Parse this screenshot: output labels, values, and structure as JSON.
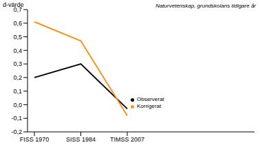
{
  "chart_data": {
    "type": "line",
    "title": "Naturvetenskap, grundskolans tidigare år",
    "y_label": "d-värde",
    "categories": [
      "FISS 1970",
      "SISS 1984",
      "TIMSS 2007"
    ],
    "series": [
      {
        "name": "Observerat",
        "color": "#000000",
        "values": [
          0.2,
          0.3,
          -0.03
        ]
      },
      {
        "name": "Korrigerat",
        "color": "#f7941d",
        "values": [
          0.61,
          0.47,
          -0.08
        ]
      }
    ],
    "ylim": [
      -0.2,
      0.7
    ],
    "yticks": [
      {
        "value": -0.2,
        "label": "-0,2"
      },
      {
        "value": -0.1,
        "label": "-0,1"
      },
      {
        "value": 0,
        "label": "0,0"
      },
      {
        "value": 0.1,
        "label": "0,1"
      },
      {
        "value": 0.2,
        "label": "0,2"
      },
      {
        "value": 0.3,
        "label": "0,3"
      },
      {
        "value": 0.4,
        "label": "0,4"
      },
      {
        "value": 0.5,
        "label": "0,5"
      },
      {
        "value": 0.6,
        "label": "0,6"
      },
      {
        "value": 0.7,
        "label": "0,7"
      }
    ],
    "grid": false,
    "legend": "right"
  }
}
